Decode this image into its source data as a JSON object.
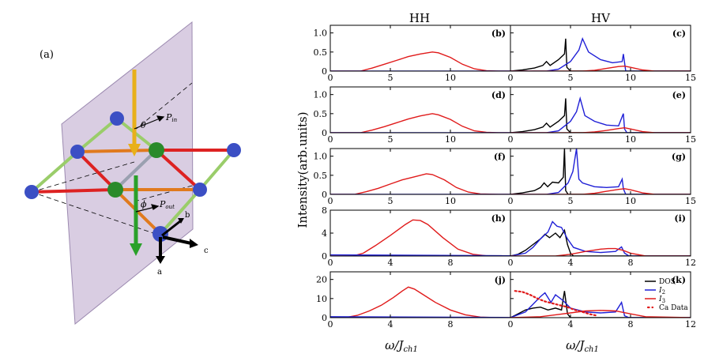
{
  "colors": {
    "black": "#000000",
    "blue": "#1f1fd6",
    "red": "#e01a1a",
    "plane": "#c9b8d6",
    "ball_blue": "#3b4fc4",
    "ball_green": "#2a8a2a",
    "bond_red": "#dd2222",
    "bond_orange": "#e07a1e",
    "bond_green": "#9acd6a",
    "bond_gray": "#9aa0b0",
    "arrow_yellow": "#e8b01a",
    "arrow_green": "#2aa02a"
  },
  "schematic": {
    "panel_label": "(a)",
    "theta_label": "θ",
    "phi_label": "ϕ",
    "p_in_label": "P",
    "p_in_sub": "in",
    "p_out_label": "P",
    "p_out_sub": "out",
    "axis_a": "a",
    "axis_b": "b",
    "axis_c": "c"
  },
  "figure": {
    "col_titles": [
      "HH",
      "HV"
    ],
    "ylabel": "Intensity(arb.units)",
    "xlabel_main": "ω/J",
    "xlabel_sub": "ch1"
  },
  "legend": {
    "items": [
      {
        "label": "DOS",
        "color": "#000000",
        "style": "solid"
      },
      {
        "label": "I",
        "sub": "2",
        "color": "#1f1fd6",
        "style": "solid"
      },
      {
        "label": "I",
        "sub": "3",
        "color": "#e01a1a",
        "style": "solid"
      },
      {
        "label": "Ca Data",
        "color": "#e01a1a",
        "style": "dotted"
      }
    ]
  },
  "chart_data": [
    {
      "panel": "(b)",
      "col": 0,
      "row": 0,
      "type": "line",
      "xlim": [
        0,
        15
      ],
      "xticks": [
        0,
        5,
        10
      ],
      "ylim": [
        0,
        1.2
      ],
      "yticks": [
        {
          "v": 0,
          "t": "0"
        },
        {
          "v": 0.5,
          "t": "0.5"
        },
        {
          "v": 1.0,
          "t": "1.0"
        }
      ],
      "series": [
        {
          "name": "I3",
          "color": "#e01a1a",
          "x": [
            0,
            2.5,
            3.5,
            4.5,
            5.5,
            6.5,
            7.5,
            8.5,
            9.0,
            10.0,
            11.0,
            12.0,
            13.0,
            14.0,
            15.0
          ],
          "y": [
            0,
            0,
            0.08,
            0.18,
            0.28,
            0.38,
            0.45,
            0.5,
            0.48,
            0.36,
            0.18,
            0.06,
            0.01,
            0,
            0
          ]
        },
        {
          "name": "I2",
          "color": "#1f1fd6",
          "x": [
            0,
            15
          ],
          "y": [
            0,
            0
          ]
        }
      ]
    },
    {
      "panel": "(c)",
      "col": 1,
      "row": 0,
      "type": "line",
      "xlim": [
        0,
        15
      ],
      "xticks": [
        0,
        5,
        10,
        15
      ],
      "ylim": [
        0,
        1.2
      ],
      "yticks": [],
      "series": [
        {
          "name": "DOS",
          "color": "#000000",
          "x": [
            0,
            1,
            2,
            2.7,
            3.0,
            3.3,
            4.0,
            4.5,
            4.6,
            4.7,
            5.0,
            15
          ],
          "y": [
            0,
            0.03,
            0.08,
            0.15,
            0.25,
            0.15,
            0.3,
            0.45,
            0.85,
            0.1,
            0,
            0
          ]
        },
        {
          "name": "I2",
          "color": "#1f1fd6",
          "x": [
            0,
            3,
            4,
            5,
            5.7,
            6.0,
            6.5,
            7.5,
            8.5,
            9.3,
            9.4,
            9.6,
            15
          ],
          "y": [
            0,
            0,
            0.05,
            0.25,
            0.55,
            0.85,
            0.5,
            0.3,
            0.22,
            0.25,
            0.45,
            0,
            0
          ]
        },
        {
          "name": "I3",
          "color": "#e01a1a",
          "x": [
            0,
            6,
            7,
            8,
            9,
            9.5,
            10,
            11,
            12,
            15
          ],
          "y": [
            0,
            0,
            0.02,
            0.07,
            0.12,
            0.13,
            0.1,
            0.03,
            0,
            0
          ]
        }
      ]
    },
    {
      "panel": "(d)",
      "col": 0,
      "row": 1,
      "type": "line",
      "xlim": [
        0,
        15
      ],
      "xticks": [
        0,
        5,
        10
      ],
      "ylim": [
        0,
        1.2
      ],
      "yticks": [
        {
          "v": 0,
          "t": "0"
        },
        {
          "v": 0.5,
          "t": "0.5"
        },
        {
          "v": 1.0,
          "t": "1.0"
        }
      ],
      "series": [
        {
          "name": "I3",
          "color": "#e01a1a",
          "x": [
            0,
            2.5,
            3.5,
            4.5,
            5.5,
            6.5,
            7.5,
            8.5,
            9.0,
            10.0,
            11.0,
            12.0,
            13.0,
            14.0,
            15.0
          ],
          "y": [
            0,
            0,
            0.07,
            0.16,
            0.26,
            0.36,
            0.44,
            0.5,
            0.47,
            0.35,
            0.17,
            0.05,
            0.01,
            0,
            0
          ]
        },
        {
          "name": "I2",
          "color": "#1f1fd6",
          "x": [
            0,
            15
          ],
          "y": [
            0,
            0
          ]
        }
      ]
    },
    {
      "panel": "(e)",
      "col": 1,
      "row": 1,
      "type": "line",
      "xlim": [
        0,
        15
      ],
      "xticks": [
        0,
        5,
        10,
        15
      ],
      "ylim": [
        0,
        1.2
      ],
      "yticks": [],
      "series": [
        {
          "name": "DOS",
          "color": "#000000",
          "x": [
            0,
            1,
            2,
            2.7,
            3.0,
            3.3,
            4.0,
            4.5,
            4.6,
            4.7,
            5.0,
            15
          ],
          "y": [
            0,
            0.03,
            0.08,
            0.15,
            0.25,
            0.15,
            0.3,
            0.45,
            0.9,
            0.1,
            0,
            0
          ]
        },
        {
          "name": "I2",
          "color": "#1f1fd6",
          "x": [
            0,
            3,
            4,
            5,
            5.5,
            5.8,
            6.2,
            7.0,
            8.0,
            9.0,
            9.4,
            9.5,
            9.7,
            15
          ],
          "y": [
            0,
            0,
            0.05,
            0.3,
            0.55,
            0.9,
            0.45,
            0.3,
            0.2,
            0.18,
            0.5,
            0.1,
            0,
            0
          ]
        },
        {
          "name": "I3",
          "color": "#e01a1a",
          "x": [
            0,
            6,
            7,
            8,
            9,
            9.5,
            10,
            11,
            12,
            15
          ],
          "y": [
            0,
            0,
            0.02,
            0.06,
            0.11,
            0.13,
            0.1,
            0.03,
            0,
            0
          ]
        }
      ]
    },
    {
      "panel": "(f)",
      "col": 0,
      "row": 2,
      "type": "line",
      "xlim": [
        0,
        15
      ],
      "xticks": [
        0,
        5,
        10
      ],
      "ylim": [
        0,
        1.2
      ],
      "yticks": [
        {
          "v": 0,
          "t": "0"
        },
        {
          "v": 0.5,
          "t": "0.5"
        },
        {
          "v": 1.0,
          "t": "1.0"
        }
      ],
      "series": [
        {
          "name": "I3",
          "color": "#e01a1a",
          "x": [
            0,
            2.0,
            3.0,
            4.0,
            5.0,
            6.0,
            7.0,
            8.0,
            8.5,
            9.5,
            10.5,
            11.5,
            12.5,
            14.0,
            15.0
          ],
          "y": [
            0,
            0,
            0.07,
            0.16,
            0.27,
            0.38,
            0.46,
            0.54,
            0.52,
            0.38,
            0.18,
            0.06,
            0.01,
            0,
            0
          ]
        },
        {
          "name": "I2",
          "color": "#1f1fd6",
          "x": [
            0,
            15
          ],
          "y": [
            0,
            0
          ]
        }
      ]
    },
    {
      "panel": "(g)",
      "col": 1,
      "row": 2,
      "type": "line",
      "xlim": [
        0,
        15
      ],
      "xticks": [
        0,
        5,
        10,
        15
      ],
      "ylim": [
        0,
        1.2
      ],
      "yticks": [],
      "series": [
        {
          "name": "DOS",
          "color": "#000000",
          "x": [
            0,
            1,
            2,
            2.5,
            2.8,
            3.1,
            3.5,
            4.0,
            4.4,
            4.5,
            4.6,
            4.8,
            15
          ],
          "y": [
            0,
            0.04,
            0.1,
            0.18,
            0.3,
            0.2,
            0.32,
            0.3,
            0.45,
            1.2,
            0.1,
            0,
            0
          ]
        },
        {
          "name": "I2",
          "color": "#1f1fd6",
          "x": [
            0,
            3,
            4,
            4.8,
            5.2,
            5.5,
            5.7,
            6.0,
            7.0,
            8.0,
            9.0,
            9.3,
            9.4,
            9.6,
            15
          ],
          "y": [
            0,
            0,
            0.05,
            0.3,
            0.6,
            1.2,
            0.4,
            0.3,
            0.2,
            0.18,
            0.2,
            0.4,
            0.15,
            0,
            0
          ]
        },
        {
          "name": "I3",
          "color": "#e01a1a",
          "x": [
            0,
            6,
            7,
            8,
            9,
            9.5,
            10,
            11,
            12,
            15
          ],
          "y": [
            0,
            0,
            0.03,
            0.08,
            0.13,
            0.15,
            0.12,
            0.04,
            0,
            0
          ]
        }
      ]
    },
    {
      "panel": "(h)",
      "col": 0,
      "row": 3,
      "type": "line",
      "xlim": [
        0,
        12
      ],
      "xticks": [
        0,
        4,
        8
      ],
      "ylim": [
        0,
        8
      ],
      "yticks": [
        {
          "v": 0,
          "t": "0"
        },
        {
          "v": 4,
          "t": "4"
        },
        {
          "v": 8,
          "t": "8"
        }
      ],
      "series": [
        {
          "name": "I3",
          "color": "#e01a1a",
          "x": [
            0,
            1.5,
            2.2,
            3.0,
            4.0,
            5.0,
            5.5,
            6.0,
            6.5,
            7.5,
            8.5,
            9.5,
            10.5,
            12
          ],
          "y": [
            0,
            0,
            0.5,
            1.8,
            3.6,
            5.5,
            6.3,
            6.2,
            5.5,
            3.2,
            1.2,
            0.3,
            0,
            0
          ]
        },
        {
          "name": "I2",
          "color": "#1f1fd6",
          "x": [
            0,
            12
          ],
          "y": [
            0.2,
            0.05
          ]
        }
      ]
    },
    {
      "panel": "(i)",
      "col": 1,
      "row": 3,
      "type": "line",
      "xlim": [
        0,
        12
      ],
      "xticks": [
        0,
        4,
        8,
        12
      ],
      "ylim": [
        0,
        8
      ],
      "yticks": [],
      "series": [
        {
          "name": "DOS",
          "color": "#000000",
          "x": [
            0,
            0.5,
            1,
            1.5,
            2,
            2.3,
            2.6,
            3.0,
            3.3,
            3.6,
            3.8,
            4.0,
            4.2,
            12
          ],
          "y": [
            0,
            0.3,
            1.0,
            2.0,
            3.0,
            3.8,
            3.2,
            4.0,
            3.2,
            4.5,
            2.0,
            0.5,
            0,
            0
          ]
        },
        {
          "name": "I2",
          "color": "#1f1fd6",
          "x": [
            0,
            1,
            1.5,
            2.0,
            2.5,
            2.8,
            3.1,
            3.4,
            3.8,
            4.2,
            5,
            6,
            7,
            7.4,
            7.6,
            7.9,
            12
          ],
          "y": [
            0,
            0.5,
            1.5,
            3.0,
            4.2,
            6.0,
            5.2,
            5.0,
            3.0,
            1.5,
            0.8,
            0.6,
            0.8,
            1.6,
            0.5,
            0,
            0
          ]
        },
        {
          "name": "I3",
          "color": "#e01a1a",
          "x": [
            0,
            3,
            4,
            5,
            6,
            6.5,
            7,
            7.5,
            8,
            9,
            12
          ],
          "y": [
            0,
            0,
            0.3,
            0.8,
            1.2,
            1.3,
            1.3,
            1.0,
            0.5,
            0,
            0
          ]
        }
      ]
    },
    {
      "panel": "(j)",
      "col": 0,
      "row": 4,
      "type": "line",
      "xlim": [
        0,
        12
      ],
      "xticks": [
        0,
        4,
        8
      ],
      "ylim": [
        0,
        24
      ],
      "yticks": [
        {
          "v": 0,
          "t": "0"
        },
        {
          "v": 10,
          "t": "10"
        },
        {
          "v": 20,
          "t": "20"
        }
      ],
      "series": [
        {
          "name": "I3",
          "color": "#e01a1a",
          "x": [
            0,
            1.0,
            1.8,
            2.6,
            3.4,
            4.2,
            4.8,
            5.2,
            5.6,
            6.2,
            7.0,
            8.0,
            9.0,
            10.0,
            11,
            12
          ],
          "y": [
            0,
            0,
            1.2,
            3.5,
            6.5,
            10.5,
            14,
            16,
            15,
            12,
            8,
            4,
            1.5,
            0.3,
            0,
            0
          ]
        },
        {
          "name": "I2",
          "color": "#1f1fd6",
          "x": [
            0,
            12
          ],
          "y": [
            0.5,
            0.1
          ]
        }
      ]
    },
    {
      "panel": "(k)",
      "col": 1,
      "row": 4,
      "type": "line",
      "xlim": [
        0,
        12
      ],
      "xticks": [
        0,
        4,
        8,
        12
      ],
      "ylim": [
        0,
        24
      ],
      "yticks": [],
      "series": [
        {
          "name": "DOS",
          "color": "#000000",
          "x": [
            0,
            0.5,
            1,
            1.5,
            2,
            2.5,
            3.0,
            3.4,
            3.6,
            3.8,
            4.0,
            12
          ],
          "y": [
            0,
            2,
            4,
            5,
            5.5,
            4,
            5,
            4,
            14,
            2,
            0,
            0
          ]
        },
        {
          "name": "I2",
          "color": "#1f1fd6",
          "x": [
            0,
            1,
            1.5,
            2.0,
            2.3,
            2.7,
            3.0,
            3.5,
            4.0,
            5,
            6,
            7,
            7.4,
            7.6,
            7.9,
            12
          ],
          "y": [
            0,
            3,
            7,
            11,
            13,
            8,
            12,
            9,
            5,
            3,
            2.5,
            3,
            8,
            1,
            0,
            0
          ]
        },
        {
          "name": "I3",
          "color": "#e01a1a",
          "x": [
            0,
            2,
            3,
            4,
            5,
            6,
            7,
            8,
            9,
            12
          ],
          "y": [
            0,
            0.5,
            1.5,
            2.5,
            3.5,
            3.8,
            3.5,
            2.0,
            0.5,
            0
          ]
        },
        {
          "name": "Ca Data",
          "color": "#e01a1a",
          "style": "dotted",
          "x": [
            0.3,
            0.8,
            1.3,
            1.8,
            2.3,
            2.8,
            3.3,
            3.8,
            4.3,
            4.8,
            5.3,
            5.8
          ],
          "y": [
            14,
            13.5,
            12,
            10,
            8.5,
            7.5,
            6.5,
            5.5,
            4,
            3,
            1.8,
            1
          ]
        }
      ]
    }
  ]
}
